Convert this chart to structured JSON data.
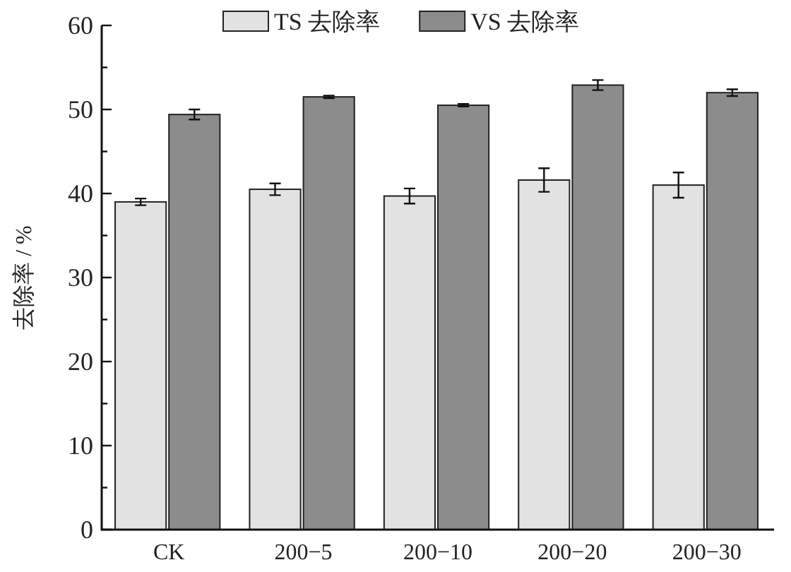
{
  "chart_data": {
    "type": "bar",
    "categories": [
      "CK",
      "200−5",
      "200−10",
      "200−20",
      "200−30"
    ],
    "ylabel": "去除率 / %",
    "ylim": [
      0,
      60
    ],
    "yticks": [
      0,
      {
        "value": 5,
        "label": null
      },
      10,
      {
        "value": 15,
        "label": null
      },
      20,
      {
        "value": 25,
        "label": null
      },
      30,
      {
        "value": 35,
        "label": null
      },
      40,
      {
        "value": 45,
        "label": null
      },
      50,
      {
        "value": 55,
        "label": null
      },
      60
    ],
    "legend": "top",
    "series": [
      {
        "name": "TS 去除率",
        "color": "#e2e2e2",
        "values": [
          39.0,
          40.5,
          39.7,
          41.6,
          41.0
        ],
        "errors": [
          0.4,
          0.7,
          0.9,
          1.4,
          1.5
        ]
      },
      {
        "name": "VS 去除率",
        "color": "#8c8c8c",
        "values": [
          49.4,
          51.5,
          50.5,
          52.9,
          52.0
        ],
        "errors": [
          0.6,
          0.15,
          0.15,
          0.6,
          0.4
        ]
      }
    ]
  }
}
